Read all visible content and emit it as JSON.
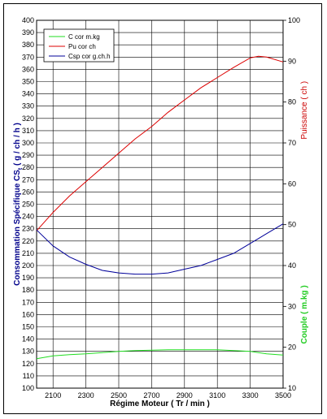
{
  "chart_data": {
    "type": "line",
    "x": [
      2000,
      2100,
      2200,
      2300,
      2400,
      2500,
      2600,
      2700,
      2800,
      2900,
      3000,
      3100,
      3200,
      3300,
      3350,
      3400,
      3500
    ],
    "xlim": [
      2000,
      3500
    ],
    "x_ticks": [
      2100,
      2300,
      2500,
      2700,
      2900,
      3100,
      3300,
      3500
    ],
    "xlabel": "Régime Moteur ( Tr / min )",
    "y_left": {
      "label": "Consommation Spécifique CS  ( g / ch / h )",
      "label_main": "Consommation Spécifique CS",
      "label_sub": "t",
      "label_units": "( g / ch / h )",
      "lim": [
        100,
        400
      ],
      "ticks": [
        100,
        110,
        120,
        130,
        140,
        150,
        160,
        170,
        180,
        190,
        200,
        210,
        220,
        230,
        240,
        250,
        260,
        270,
        280,
        290,
        300,
        310,
        320,
        330,
        340,
        350,
        360,
        370,
        380,
        390,
        400
      ],
      "color": "#00008b"
    },
    "y_right_top": {
      "label": "Puissance ( ch )",
      "lim": [
        10,
        100
      ],
      "ticks": [
        10,
        20,
        30,
        40,
        50,
        60,
        70,
        80,
        90,
        100
      ],
      "color": "#cc0000"
    },
    "y_right_bottom": {
      "label": "Couple ( m.kg )",
      "color": "#22cc22"
    },
    "series": [
      {
        "name": "C cor m.kg",
        "axis": "y_right_top",
        "color": "#22dd22",
        "values": [
          17.2,
          17.9,
          18.2,
          18.4,
          18.7,
          19.0,
          19.2,
          19.3,
          19.4,
          19.4,
          19.4,
          19.4,
          19.2,
          19.0,
          18.7,
          18.4,
          18.1
        ]
      },
      {
        "name": "Pu cor ch",
        "axis": "y_right_top",
        "color": "#dd0000",
        "values": [
          48.5,
          53.0,
          57.0,
          60.5,
          64.0,
          67.5,
          71.0,
          74.0,
          77.5,
          80.5,
          83.5,
          86.0,
          88.5,
          90.8,
          91.2,
          91.0,
          89.8
        ]
      },
      {
        "name": "Csp cor g.ch.h",
        "axis": "y_left",
        "color": "#000099",
        "values": [
          229,
          216,
          207,
          201,
          196,
          194,
          193,
          193,
          194,
          197,
          200,
          205,
          210,
          218,
          222,
          226,
          234
        ]
      }
    ],
    "legend": "top-left",
    "grid": true
  }
}
